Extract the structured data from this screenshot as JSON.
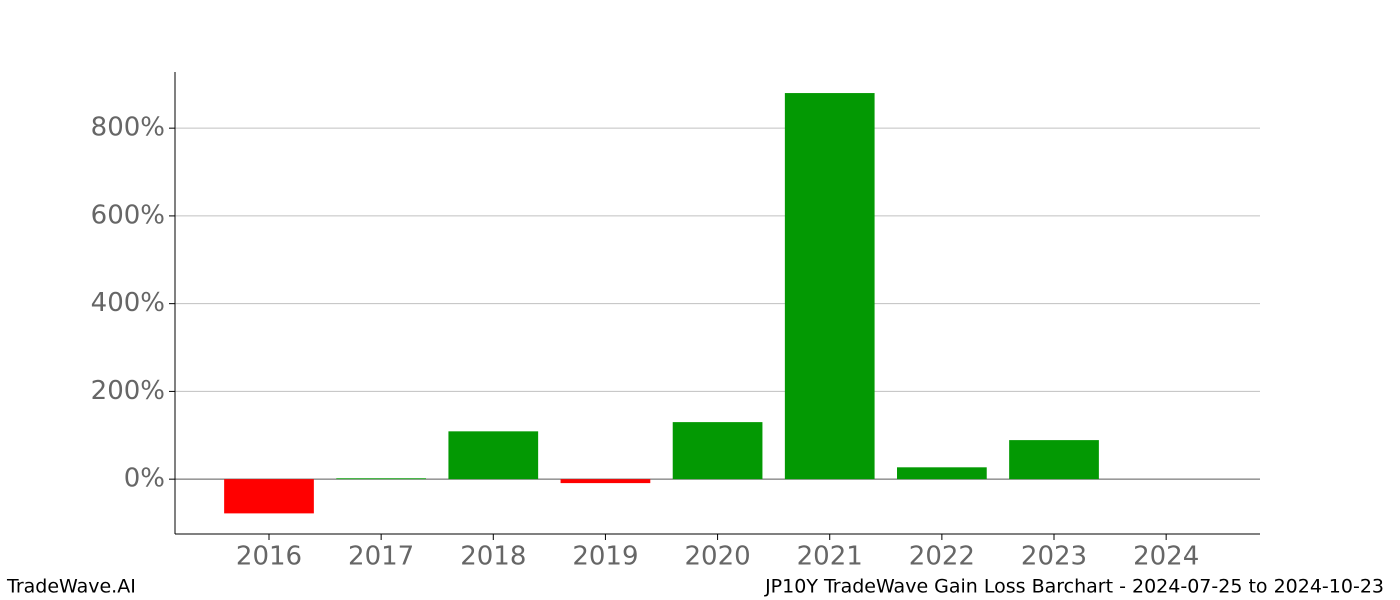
{
  "chart_data": {
    "type": "bar",
    "categories": [
      "2016",
      "2017",
      "2018",
      "2019",
      "2020",
      "2021",
      "2022",
      "2023",
      "2024"
    ],
    "values": [
      -78,
      2,
      109,
      -9,
      130,
      880,
      27,
      89,
      0
    ],
    "positive_color": "#039903",
    "negative_color": "#ff0000",
    "ylim": [
      -125,
      928
    ],
    "yticks": [
      {
        "value": 0,
        "label": "0%"
      },
      {
        "value": 200,
        "label": "200%"
      },
      {
        "value": 400,
        "label": "400%"
      },
      {
        "value": 600,
        "label": "600%"
      },
      {
        "value": 800,
        "label": "800%"
      }
    ],
    "grid": true,
    "footer_left": "TradeWave.AI",
    "footer_right": "JP10Y TradeWave Gain Loss Barchart - 2024-07-25 to 2024-10-23"
  }
}
